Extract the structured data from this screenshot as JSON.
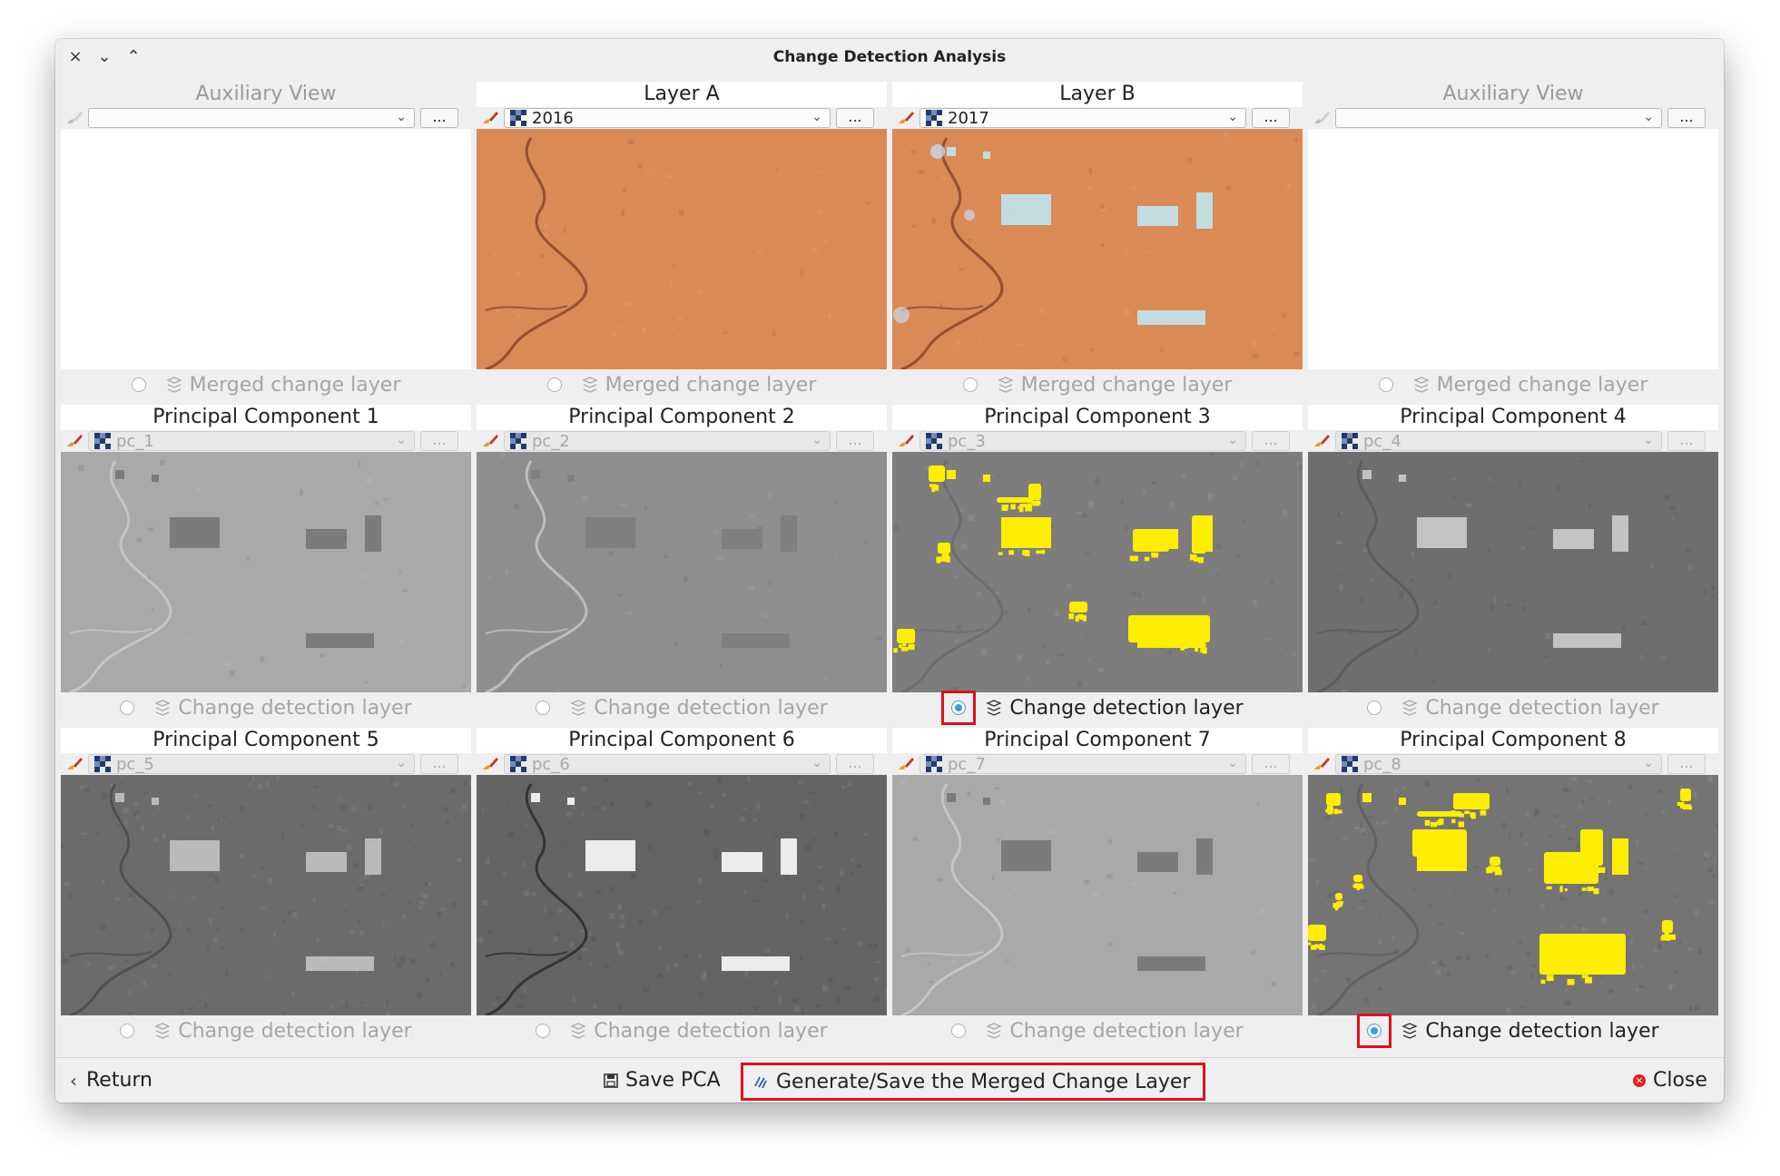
{
  "window": {
    "title": "Change Detection Analysis"
  },
  "titlebar": {
    "close": "×",
    "minimize": "⌄",
    "maximize": "⌃"
  },
  "cells": [
    {
      "title": "Auxiliary View",
      "combo": "",
      "enabled": false,
      "radio_label": "Merged change layer",
      "selected": false,
      "image": "none"
    },
    {
      "title": "Layer A",
      "combo": "2016",
      "enabled": true,
      "radio_label": "Merged change layer",
      "selected": false,
      "image": "sat2016"
    },
    {
      "title": "Layer B",
      "combo": "2017",
      "enabled": true,
      "radio_label": "Merged change layer",
      "selected": false,
      "image": "sat2017"
    },
    {
      "title": "Auxiliary View",
      "combo": "",
      "enabled": false,
      "radio_label": "Merged change layer",
      "selected": false,
      "image": "none"
    },
    {
      "title": "Principal Component 1",
      "combo": "pc_1",
      "enabled": false,
      "radio_label": "Change detection layer",
      "selected": false,
      "image": "pc_light"
    },
    {
      "title": "Principal Component 2",
      "combo": "pc_2",
      "enabled": false,
      "radio_label": "Change detection layer",
      "selected": false,
      "image": "pc_mid"
    },
    {
      "title": "Principal Component 3",
      "combo": "pc_3",
      "enabled": false,
      "radio_label": "Change detection layer",
      "selected": true,
      "image": "pc_yellow"
    },
    {
      "title": "Principal Component 4",
      "combo": "pc_4",
      "enabled": false,
      "radio_label": "Change detection layer",
      "selected": false,
      "image": "pc_dark"
    },
    {
      "title": "Principal Component 5",
      "combo": "pc_5",
      "enabled": false,
      "radio_label": "Change detection layer",
      "selected": false,
      "image": "pc_noisy"
    },
    {
      "title": "Principal Component 6",
      "combo": "pc_6",
      "enabled": false,
      "radio_label": "Change detection layer",
      "selected": false,
      "image": "pc_contrast"
    },
    {
      "title": "Principal Component 7",
      "combo": "pc_7",
      "enabled": false,
      "radio_label": "Change detection layer",
      "selected": false,
      "image": "pc_light"
    },
    {
      "title": "Principal Component 8",
      "combo": "pc_8",
      "enabled": false,
      "radio_label": "Change detection layer",
      "selected": true,
      "image": "pc_yellow2"
    }
  ],
  "footer": {
    "return_label": "Return",
    "save_pca_label": "Save PCA",
    "generate_label": "Generate/Save the Merged Change Layer",
    "close_label": "Close"
  },
  "dots_label": "...",
  "colors": {
    "highlight_box": "#e0101c",
    "radio_on": "#3d9be0",
    "change_pixels": "#ffee00",
    "soil": "#d98a55"
  }
}
